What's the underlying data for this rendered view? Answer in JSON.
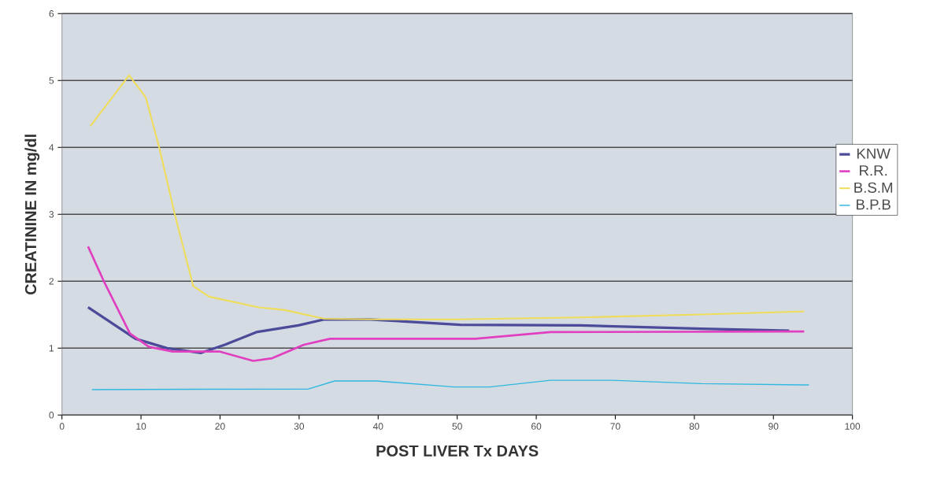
{
  "chart_data": {
    "type": "line",
    "xlabel": "POST LIVER Tx DAYS",
    "ylabel": "CREATININE IN mg/dl",
    "xlim": [
      0,
      100
    ],
    "ylim": [
      0,
      6
    ],
    "xticks": [
      0,
      10,
      20,
      30,
      40,
      50,
      60,
      70,
      80,
      90,
      100
    ],
    "yticks": [
      0,
      1,
      2,
      3,
      4,
      5,
      6
    ],
    "grid": "y",
    "legend": "right",
    "marker": "none",
    "line_style": "solid",
    "series": [
      {
        "name": "KNW",
        "color": "#4b4b9a",
        "x": [
          3.3,
          9.3,
          13.3,
          17.6,
          20.6,
          24.6,
          29.9,
          33.2,
          39,
          50.4,
          65.6,
          80.9,
          92
        ],
        "values": [
          1.61,
          1.14,
          1.0,
          0.93,
          1.05,
          1.24,
          1.34,
          1.43,
          1.43,
          1.35,
          1.34,
          1.29,
          1.26
        ]
      },
      {
        "name": "R.R.",
        "color": "#e040c0",
        "x": [
          3.3,
          5.3,
          8.6,
          11,
          14,
          19.9,
          24.2,
          26.6,
          30.6,
          33.9,
          39,
          52.3,
          61.8,
          93.9
        ],
        "values": [
          2.52,
          2.0,
          1.22,
          1.02,
          0.95,
          0.95,
          0.81,
          0.85,
          1.05,
          1.14,
          1.14,
          1.14,
          1.24,
          1.25
        ]
      },
      {
        "name": "B.S.M",
        "color": "#eedc5a",
        "x": [
          3.6,
          8.5,
          10.6,
          12.3,
          14.3,
          16.6,
          18.6,
          24.9,
          28.2,
          33.2,
          39.8,
          50,
          65.6,
          80,
          93.9
        ],
        "values": [
          4.32,
          5.08,
          4.75,
          4.0,
          2.99,
          1.93,
          1.77,
          1.61,
          1.57,
          1.44,
          1.43,
          1.43,
          1.46,
          1.5,
          1.55
        ]
      },
      {
        "name": "B.P.B",
        "color": "#30b8e0",
        "x": [
          3.8,
          31.2,
          34.5,
          39.8,
          49.6,
          54.1,
          61.8,
          69.5,
          80.9,
          94.5
        ],
        "values": [
          0.38,
          0.39,
          0.51,
          0.51,
          0.42,
          0.42,
          0.52,
          0.52,
          0.47,
          0.45
        ]
      }
    ]
  }
}
